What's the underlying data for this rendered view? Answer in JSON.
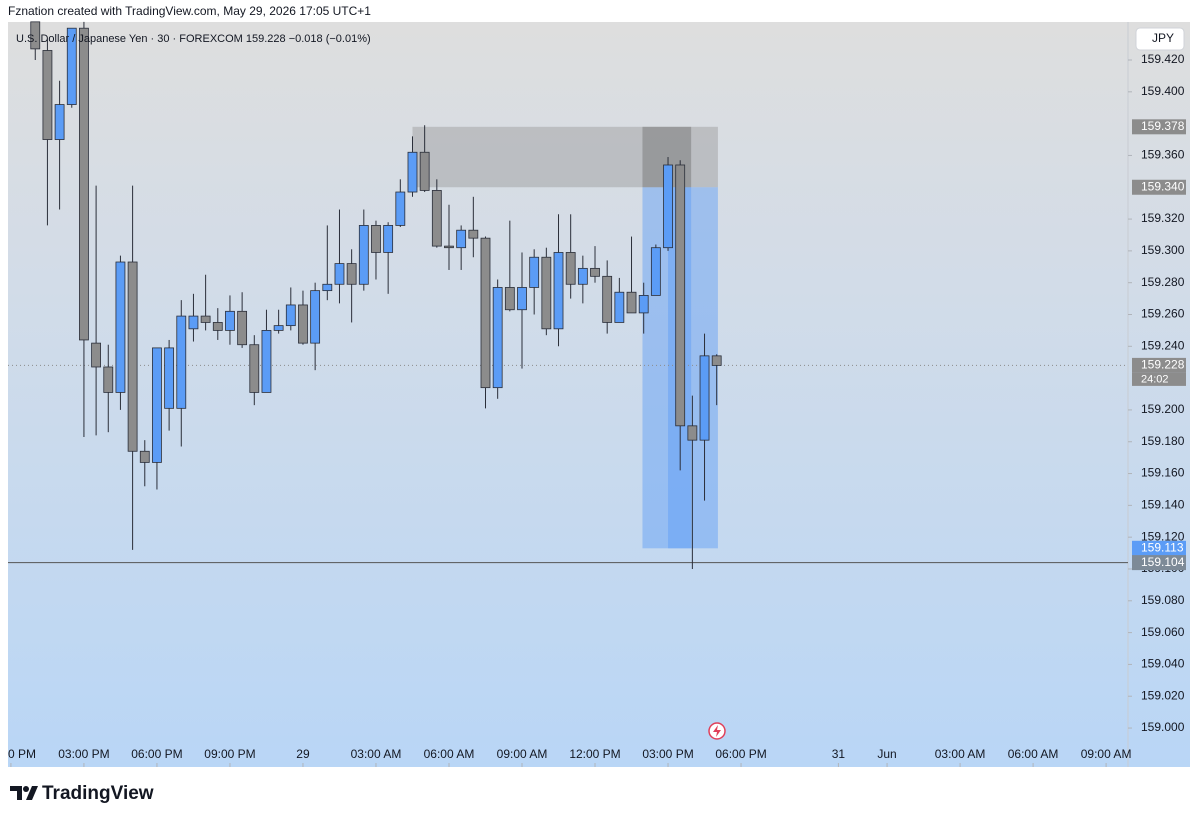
{
  "header": {
    "credit": "Fznation created with TradingView.com, May 29, 2026 17:05 UTC+1",
    "legend": "U.S. Dollar / Japanese Yen · 30 · FOREXCOM  159.228  −0.018 (−0.01%)",
    "currency": "JPY",
    "logo": "TradingView",
    "countdown": "24:02"
  },
  "chart_data": {
    "type": "candlestick",
    "x": [
      -4,
      -3,
      -2,
      -1,
      0,
      1,
      2,
      3,
      4,
      5,
      6,
      7,
      8,
      9,
      10,
      11,
      12,
      13,
      14,
      15,
      16,
      17,
      18,
      19,
      20,
      21,
      22,
      23,
      24,
      25,
      26,
      27,
      28,
      29,
      30,
      31,
      32,
      33,
      34,
      35,
      36,
      37,
      38,
      39,
      40,
      41,
      42,
      43,
      44,
      45,
      46,
      47,
      48,
      49,
      50,
      51,
      52
    ],
    "open": [
      159.444,
      159.426,
      159.37,
      159.392,
      159.44,
      159.242,
      159.227,
      159.211,
      159.293,
      159.174,
      159.167,
      159.201,
      159.201,
      159.251,
      159.259,
      159.255,
      159.25,
      159.262,
      159.241,
      159.211,
      159.25,
      159.253,
      159.266,
      159.242,
      159.275,
      159.279,
      159.292,
      159.279,
      159.316,
      159.299,
      159.316,
      159.337,
      159.362,
      159.338,
      159.303,
      159.302,
      159.313,
      159.308,
      159.214,
      159.277,
      159.263,
      159.277,
      159.296,
      159.251,
      159.299,
      159.279,
      159.289,
      159.284,
      159.255,
      159.274,
      159.261,
      159.272,
      159.302,
      159.354,
      159.19,
      159.181,
      159.234
    ],
    "high": [
      159.444,
      159.433,
      159.407,
      159.44,
      159.444,
      159.341,
      159.241,
      159.297,
      159.341,
      159.181,
      159.239,
      159.244,
      159.269,
      159.273,
      159.285,
      159.264,
      159.272,
      159.274,
      159.247,
      159.263,
      159.263,
      159.277,
      159.275,
      159.28,
      159.316,
      159.326,
      159.301,
      159.326,
      159.319,
      159.318,
      159.345,
      159.372,
      159.379,
      159.345,
      159.329,
      159.316,
      159.334,
      159.309,
      159.282,
      159.319,
      159.299,
      159.301,
      159.302,
      159.323,
      159.323,
      159.297,
      159.303,
      159.294,
      159.283,
      159.309,
      159.28,
      159.304,
      159.359,
      159.357,
      159.209,
      159.248,
      159.235
    ],
    "low": [
      159.42,
      159.316,
      159.326,
      159.39,
      159.183,
      159.184,
      159.186,
      159.2,
      159.112,
      159.152,
      159.15,
      159.187,
      159.177,
      159.243,
      159.25,
      159.244,
      159.241,
      159.239,
      159.203,
      159.211,
      159.248,
      159.25,
      159.241,
      159.225,
      159.269,
      159.267,
      159.255,
      159.275,
      159.282,
      159.273,
      159.315,
      159.334,
      159.337,
      159.302,
      159.288,
      159.288,
      159.296,
      159.201,
      159.207,
      159.262,
      159.226,
      159.26,
      159.247,
      159.24,
      159.27,
      159.267,
      159.28,
      159.248,
      159.255,
      159.261,
      159.248,
      159.272,
      159.3,
      159.162,
      159.1,
      159.143,
      159.203
    ],
    "close": [
      159.427,
      159.37,
      159.392,
      159.44,
      159.244,
      159.227,
      159.211,
      159.293,
      159.174,
      159.167,
      159.239,
      159.239,
      159.259,
      159.259,
      159.255,
      159.25,
      159.262,
      159.241,
      159.211,
      159.25,
      159.253,
      159.266,
      159.242,
      159.275,
      159.279,
      159.292,
      159.279,
      159.316,
      159.299,
      159.316,
      159.337,
      159.362,
      159.338,
      159.303,
      159.302,
      159.313,
      159.308,
      159.214,
      159.277,
      159.263,
      159.277,
      159.296,
      159.251,
      159.299,
      159.279,
      159.289,
      159.284,
      159.255,
      159.274,
      159.261,
      159.272,
      159.302,
      159.354,
      159.19,
      159.181,
      159.234,
      159.228
    ],
    "up_color": "#5b9cf6",
    "down_color": "#8c8c8c",
    "xlim": [
      -6.24,
      85.8
    ],
    "ylim": [
      158.9755,
      159.4439
    ],
    "xticks": [
      {
        "value": -6,
        "label": "0 PM"
      },
      {
        "value": 0,
        "label": "03:00 PM"
      },
      {
        "value": 6,
        "label": "06:00 PM"
      },
      {
        "value": 12,
        "label": "09:00 PM"
      },
      {
        "value": 18,
        "label": "29"
      },
      {
        "value": 24,
        "label": "03:00 AM"
      },
      {
        "value": 30,
        "label": "06:00 AM"
      },
      {
        "value": 36,
        "label": "09:00 AM"
      },
      {
        "value": 42,
        "label": "12:00 PM"
      },
      {
        "value": 48,
        "label": "03:00 PM"
      },
      {
        "value": 54,
        "label": "06:00 PM"
      },
      {
        "value": 62,
        "label": "31"
      },
      {
        "value": 66,
        "label": "Jun"
      },
      {
        "value": 72,
        "label": "03:00 AM"
      },
      {
        "value": 78,
        "label": "06:00 AM"
      },
      {
        "value": 84,
        "label": "09:00 AM"
      }
    ],
    "yticks": [
      {
        "value": 159.42,
        "label": "159.420"
      },
      {
        "value": 159.4,
        "label": "159.400"
      },
      {
        "value": 159.36,
        "label": "159.360"
      },
      {
        "value": 159.32,
        "label": "159.320"
      },
      {
        "value": 159.3,
        "label": "159.300"
      },
      {
        "value": 159.28,
        "label": "159.280"
      },
      {
        "value": 159.26,
        "label": "159.260"
      },
      {
        "value": 159.24,
        "label": "159.240"
      },
      {
        "value": 159.2,
        "label": "159.200"
      },
      {
        "value": 159.18,
        "label": "159.180"
      },
      {
        "value": 159.16,
        "label": "159.160"
      },
      {
        "value": 159.14,
        "label": "159.140"
      },
      {
        "value": 159.12,
        "label": "159.120"
      },
      {
        "value": 159.1,
        "label": "159.100"
      },
      {
        "value": 159.08,
        "label": "159.080"
      },
      {
        "value": 159.06,
        "label": "159.060"
      },
      {
        "value": 159.04,
        "label": "159.040"
      },
      {
        "value": 159.02,
        "label": "159.020"
      },
      {
        "value": 159.0,
        "label": "159.000"
      }
    ],
    "zones": [
      {
        "from": 27,
        "to": 52.1,
        "top": 159.378,
        "bottom": 159.34,
        "color": "#9a9a9a"
      },
      {
        "from": 45.9,
        "to": 52.1,
        "top": 159.34,
        "bottom": 159.113,
        "color": "#5b9cf6"
      },
      {
        "from": 48,
        "to": 49.9,
        "top": 159.34,
        "bottom": 159.113,
        "color": "#5b9cf6"
      },
      {
        "from": 45.9,
        "to": 49.9,
        "top": 159.378,
        "bottom": 159.34,
        "color": "#6f6f6f"
      }
    ],
    "price_labels": [
      {
        "value": 159.378,
        "label": "159.378",
        "color": "#8c8c8c"
      },
      {
        "value": 159.34,
        "label": "159.340",
        "color": "#8c8c8c"
      },
      {
        "value": 159.228,
        "label": "159.228",
        "color": "#8c8c8c"
      },
      {
        "value": 159.113,
        "label": "159.113",
        "color": "#5b9cf6"
      },
      {
        "value": 159.104,
        "label": "159.104",
        "color": "#7d8a97"
      }
    ],
    "hlines": [
      {
        "value": 159.104,
        "style": "solid"
      },
      {
        "value": 159.228,
        "style": "dotted"
      }
    ]
  }
}
